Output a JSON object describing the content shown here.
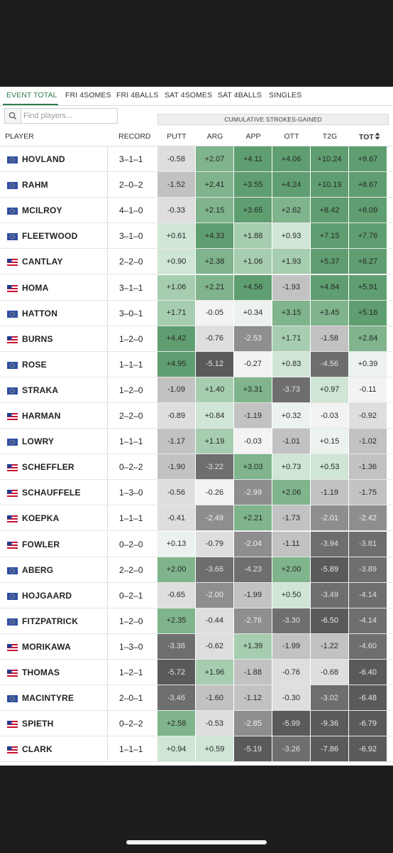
{
  "tabs": [
    {
      "label": "EVENT TOTAL",
      "active": true
    },
    {
      "label": "FRI 4SOMES",
      "active": false
    },
    {
      "label": "FRI 4BALLS",
      "active": false
    },
    {
      "label": "SAT 4SOMES",
      "active": false
    },
    {
      "label": "SAT 4BALLS",
      "active": false
    },
    {
      "label": "SINGLES",
      "active": false
    }
  ],
  "search": {
    "placeholder": "Find players...",
    "icon": "search-icon"
  },
  "group_header": "CUMULATIVE STROKES-GAINED",
  "columns": {
    "player": "PLAYER",
    "record": "RECORD",
    "putt": "PUTT",
    "arg": "ARG",
    "app": "APP",
    "ott": "OTT",
    "t2g": "T2G",
    "tot": "TOT",
    "sort_icon": "sort-icon"
  },
  "colors": {
    "accent": "#2e7d4f",
    "positive": "#3a9a5c",
    "negative": "#555555",
    "eu_flag": "#2e4fa3",
    "us_flag_red": "#c8102e",
    "us_flag_blue": "#1f3a93"
  },
  "players": [
    {
      "name": "HOVLAND",
      "team": "EU",
      "record": "3–1–1",
      "putt": "-0.58",
      "arg": "+2.07",
      "app": "+4.11",
      "ott": "+4.06",
      "t2g": "+10.24",
      "tot": "+9.67"
    },
    {
      "name": "RAHM",
      "team": "EU",
      "record": "2–0–2",
      "putt": "-1.52",
      "arg": "+2.41",
      "app": "+3.55",
      "ott": "+4.24",
      "t2g": "+10.19",
      "tot": "+8.67"
    },
    {
      "name": "MCILROY",
      "team": "EU",
      "record": "4–1–0",
      "putt": "-0.33",
      "arg": "+2.15",
      "app": "+3.65",
      "ott": "+2.62",
      "t2g": "+8.42",
      "tot": "+8.09"
    },
    {
      "name": "FLEETWOOD",
      "team": "EU",
      "record": "3–1–0",
      "putt": "+0.61",
      "arg": "+4.33",
      "app": "+1.88",
      "ott": "+0.93",
      "t2g": "+7.15",
      "tot": "+7.76"
    },
    {
      "name": "CANTLAY",
      "team": "US",
      "record": "2–2–0",
      "putt": "+0.90",
      "arg": "+2.38",
      "app": "+1.06",
      "ott": "+1.93",
      "t2g": "+5.37",
      "tot": "+6.27"
    },
    {
      "name": "HOMA",
      "team": "US",
      "record": "3–1–1",
      "putt": "+1.06",
      "arg": "+2.21",
      "app": "+4.56",
      "ott": "-1.93",
      "t2g": "+4.84",
      "tot": "+5.91"
    },
    {
      "name": "HATTON",
      "team": "EU",
      "record": "3–0–1",
      "putt": "+1.71",
      "arg": "-0.05",
      "app": "+0.34",
      "ott": "+3.15",
      "t2g": "+3.45",
      "tot": "+5.16"
    },
    {
      "name": "BURNS",
      "team": "US",
      "record": "1–2–0",
      "putt": "+4.42",
      "arg": "-0.76",
      "app": "-2.53",
      "ott": "+1.71",
      "t2g": "-1.58",
      "tot": "+2.84"
    },
    {
      "name": "ROSE",
      "team": "EU",
      "record": "1–1–1",
      "putt": "+4.95",
      "arg": "-5.12",
      "app": "-0.27",
      "ott": "+0.83",
      "t2g": "-4.56",
      "tot": "+0.39"
    },
    {
      "name": "STRAKA",
      "team": "EU",
      "record": "1–2–0",
      "putt": "-1.09",
      "arg": "+1.40",
      "app": "+3.31",
      "ott": "-3.73",
      "t2g": "+0.97",
      "tot": "-0.11"
    },
    {
      "name": "HARMAN",
      "team": "US",
      "record": "2–2–0",
      "putt": "-0.89",
      "arg": "+0.84",
      "app": "-1.19",
      "ott": "+0.32",
      "t2g": "-0.03",
      "tot": "-0.92"
    },
    {
      "name": "LOWRY",
      "team": "EU",
      "record": "1–1–1",
      "putt": "-1.17",
      "arg": "+1.19",
      "app": "-0.03",
      "ott": "-1.01",
      "t2g": "+0.15",
      "tot": "-1.02"
    },
    {
      "name": "SCHEFFLER",
      "team": "US",
      "record": "0–2–2",
      "putt": "-1.90",
      "arg": "-3.22",
      "app": "+3.03",
      "ott": "+0.73",
      "t2g": "+0.53",
      "tot": "-1.36"
    },
    {
      "name": "SCHAUFFELE",
      "team": "US",
      "record": "1–3–0",
      "putt": "-0.56",
      "arg": "-0.26",
      "app": "-2.99",
      "ott": "+2.06",
      "t2g": "-1.19",
      "tot": "-1.75"
    },
    {
      "name": "KOEPKA",
      "team": "US",
      "record": "1–1–1",
      "putt": "-0.41",
      "arg": "-2.49",
      "app": "+2.21",
      "ott": "-1.73",
      "t2g": "-2.01",
      "tot": "-2.42"
    },
    {
      "name": "FOWLER",
      "team": "US",
      "record": "0–2–0",
      "putt": "+0.13",
      "arg": "-0.79",
      "app": "-2.04",
      "ott": "-1.11",
      "t2g": "-3.94",
      "tot": "-3.81"
    },
    {
      "name": "ABERG",
      "team": "EU",
      "record": "2–2–0",
      "putt": "+2.00",
      "arg": "-3.66",
      "app": "-4.23",
      "ott": "+2.00",
      "t2g": "-5.89",
      "tot": "-3.89"
    },
    {
      "name": "HOJGAARD",
      "team": "EU",
      "record": "0–2–1",
      "putt": "-0.65",
      "arg": "-2.00",
      "app": "-1.99",
      "ott": "+0.50",
      "t2g": "-3.49",
      "tot": "-4.14"
    },
    {
      "name": "FITZPATRICK",
      "team": "EU",
      "record": "1–2–0",
      "putt": "+2.35",
      "arg": "-0.44",
      "app": "-2.76",
      "ott": "-3.30",
      "t2g": "-6.50",
      "tot": "-4.14"
    },
    {
      "name": "MORIKAWA",
      "team": "US",
      "record": "1–3–0",
      "putt": "-3.38",
      "arg": "-0.62",
      "app": "+1.39",
      "ott": "-1.99",
      "t2g": "-1.22",
      "tot": "-4.60"
    },
    {
      "name": "THOMAS",
      "team": "US",
      "record": "1–2–1",
      "putt": "-5.72",
      "arg": "+1.96",
      "app": "-1.88",
      "ott": "-0.76",
      "t2g": "-0.68",
      "tot": "-6.40"
    },
    {
      "name": "MACINTYRE",
      "team": "EU",
      "record": "2–0–1",
      "putt": "-3.46",
      "arg": "-1.60",
      "app": "-1.12",
      "ott": "-0.30",
      "t2g": "-3.02",
      "tot": "-6.48"
    },
    {
      "name": "SPIETH",
      "team": "US",
      "record": "0–2–2",
      "putt": "+2.58",
      "arg": "-0.53",
      "app": "-2.85",
      "ott": "-5.99",
      "t2g": "-9.36",
      "tot": "-6.79"
    },
    {
      "name": "CLARK",
      "team": "US",
      "record": "1–1–1",
      "putt": "+0.94",
      "arg": "+0.59",
      "app": "-5.19",
      "ott": "-3.26",
      "t2g": "-7.86",
      "tot": "-6.92"
    }
  ]
}
